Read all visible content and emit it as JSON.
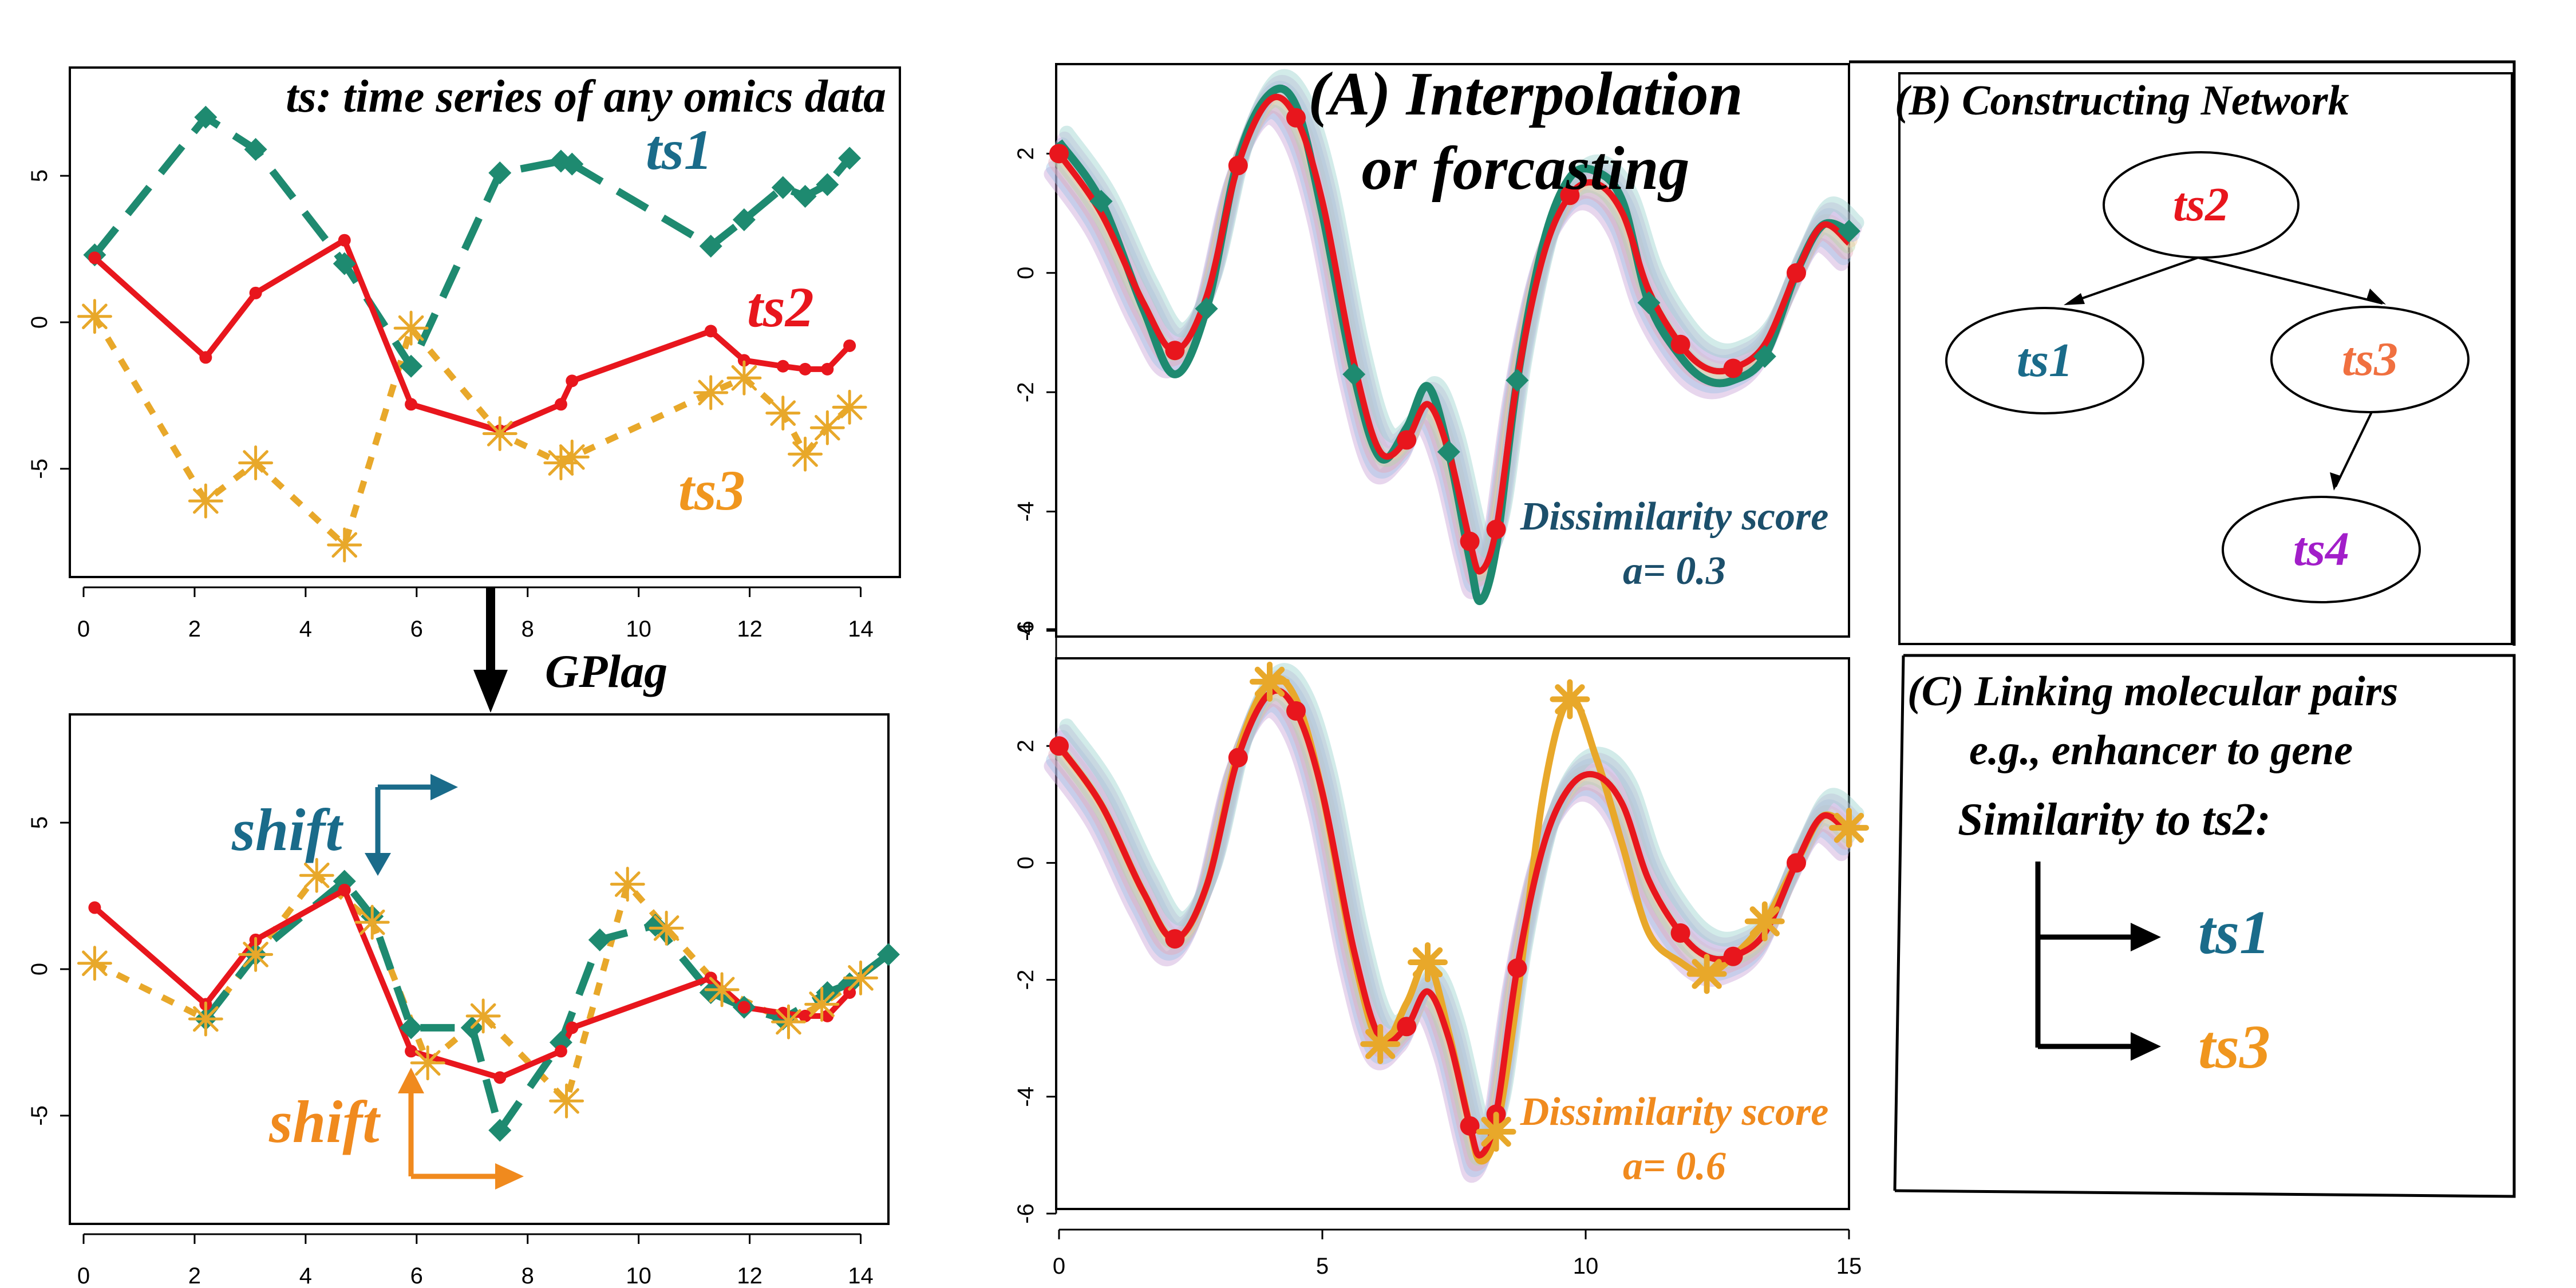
{
  "colors": {
    "ts1": "#1a6b8a",
    "ts1_line": "#1e8a70",
    "ts2": "#e8161d",
    "ts3": "#f0961e",
    "ts3_line": "#e8a82a",
    "ts4": "#a21ec9",
    "ts3_node": "#f07040",
    "shift_blue": "#1a6b8a",
    "shift_orange": "#f08a1e",
    "score_blue": "#1c4f6b",
    "score_orange": "#f08a1e"
  },
  "left_top": {
    "caption": "ts: time series of any omics data",
    "label_ts1": "ts1",
    "label_ts2": "ts2",
    "label_ts3": "ts3",
    "xticks": [
      "0",
      "2",
      "4",
      "6",
      "8",
      "10",
      "12",
      "14"
    ],
    "yticks": [
      "5",
      "0",
      "-5"
    ]
  },
  "arrow_label": "GPlag",
  "left_bottom": {
    "shift_top": "shift",
    "shift_bottom": "shift",
    "xticks": [
      "0",
      "2",
      "4",
      "6",
      "8",
      "10",
      "12",
      "14"
    ],
    "yticks": [
      "5",
      "0",
      "-5"
    ]
  },
  "panel_a": {
    "title_line1": "(A) Interpolation",
    "title_line2": "or forcasting",
    "top_score_line1": "Dissimilarity score",
    "top_score_line2": "a= 0.3",
    "bottom_score_line1": "Dissimilarity score",
    "bottom_score_line2": "a= 0.6",
    "top_yticks": [
      "2",
      "0",
      "-2",
      "-4",
      "-6"
    ],
    "bottom_yticks": [
      "4",
      "2",
      "0",
      "-2",
      "-4",
      "-6"
    ],
    "xticks": [
      "0",
      "5",
      "10",
      "15"
    ]
  },
  "panel_b": {
    "title": "(B) Constructing Network",
    "nodes": [
      "ts2",
      "ts1",
      "ts3",
      "ts4"
    ]
  },
  "panel_c": {
    "title": "(C) Linking molecular pairs",
    "example": "e.g., enhancer to gene",
    "similarity": "Similarity to ts2:",
    "first": "ts1",
    "second": "ts3"
  },
  "chart_data": [
    {
      "type": "line",
      "xlim": [
        0,
        14.5
      ],
      "ylim": [
        -8.5,
        8.5
      ],
      "series": [
        {
          "name": "ts1",
          "x": [
            0.2,
            2.2,
            3.1,
            4.7,
            5.9,
            7.5,
            8.6,
            8.8,
            11.3,
            11.9,
            12.6,
            13.0,
            13.4,
            13.8
          ],
          "y": [
            2.3,
            7.0,
            5.9,
            2.0,
            -1.5,
            5.1,
            5.5,
            5.4,
            2.6,
            3.5,
            4.6,
            4.3,
            4.7,
            5.6
          ]
        },
        {
          "name": "ts2",
          "x": [
            0.2,
            2.2,
            3.1,
            4.7,
            5.9,
            7.5,
            8.6,
            8.8,
            11.3,
            11.9,
            12.6,
            13.0,
            13.4,
            13.8
          ],
          "y": [
            2.2,
            -1.2,
            1.0,
            2.8,
            -2.8,
            -3.7,
            -2.8,
            -2.0,
            -0.3,
            -1.3,
            -1.5,
            -1.6,
            -1.6,
            -0.8
          ]
        },
        {
          "name": "ts3",
          "x": [
            0.2,
            2.2,
            3.1,
            4.7,
            5.9,
            7.5,
            8.6,
            8.8,
            11.3,
            11.9,
            12.6,
            13.0,
            13.4,
            13.8
          ],
          "y": [
            0.2,
            -6.1,
            -4.8,
            -7.6,
            -0.2,
            -3.8,
            -4.8,
            -4.6,
            -2.4,
            -1.9,
            -3.1,
            -4.5,
            -3.6,
            -2.9
          ]
        }
      ]
    },
    {
      "type": "line",
      "xlim": [
        0,
        14.5
      ],
      "ylim": [
        -8.5,
        8.5
      ],
      "series": [
        {
          "name": "ts1",
          "x": [
            2.2,
            3.1,
            4.7,
            5.2,
            5.9,
            7.0,
            7.5,
            8.6,
            9.3,
            10.3,
            11.3,
            11.9,
            12.6,
            13.4,
            13.8,
            14.5
          ],
          "y": [
            -1.7,
            0.5,
            3.0,
            1.8,
            -2.0,
            -2.0,
            -5.5,
            -2.5,
            1.0,
            1.5,
            -0.8,
            -1.3,
            -1.7,
            -0.8,
            -0.5,
            0.5
          ]
        },
        {
          "name": "ts2",
          "x": [
            0.2,
            2.2,
            3.1,
            4.7,
            5.9,
            7.5,
            8.6,
            8.8,
            11.3,
            11.9,
            12.6,
            13.0,
            13.4,
            13.8
          ],
          "y": [
            2.1,
            -1.2,
            1.0,
            2.7,
            -2.8,
            -3.7,
            -2.8,
            -2.0,
            -0.3,
            -1.3,
            -1.5,
            -1.6,
            -1.6,
            -0.8
          ]
        },
        {
          "name": "ts3",
          "x": [
            0.2,
            2.2,
            3.1,
            4.2,
            5.2,
            6.2,
            7.2,
            8.7,
            9.8,
            10.5,
            11.5,
            12.7,
            13.3,
            14.0
          ],
          "y": [
            0.2,
            -1.7,
            0.5,
            3.2,
            1.6,
            -3.2,
            -1.6,
            -4.5,
            2.9,
            1.4,
            -0.7,
            -1.8,
            -1.2,
            -0.3
          ]
        }
      ]
    },
    {
      "type": "line",
      "xlim": [
        0,
        15
      ],
      "ylim": [
        -6,
        3.5
      ],
      "series": [
        {
          "name": "ts2",
          "x": [
            0,
            0.8,
            1.6,
            2.2,
            2.8,
            3.4,
            4.0,
            4.5,
            5.0,
            5.6,
            6.1,
            6.6,
            7.0,
            7.4,
            7.8,
            8.0,
            8.3,
            8.7,
            9.2,
            9.7,
            10.2,
            10.7,
            11.2,
            11.8,
            12.3,
            12.8,
            13.4,
            14.0,
            14.5,
            15
          ],
          "y": [
            2.0,
            1.0,
            -0.5,
            -1.3,
            -0.4,
            1.8,
            2.9,
            2.6,
            1.2,
            -1.5,
            -3.0,
            -2.8,
            -2.2,
            -3.0,
            -4.5,
            -5.0,
            -4.3,
            -1.8,
            0.3,
            1.3,
            1.5,
            1.0,
            -0.3,
            -1.2,
            -1.6,
            -1.6,
            -1.2,
            0.0,
            0.8,
            0.5
          ]
        },
        {
          "name": "ts1",
          "x": [
            0,
            0.8,
            1.6,
            2.2,
            2.8,
            3.4,
            4.0,
            4.5,
            5.0,
            5.6,
            6.1,
            6.6,
            7.0,
            7.4,
            7.8,
            8.0,
            8.3,
            8.7,
            9.2,
            9.7,
            10.2,
            10.7,
            11.2,
            11.8,
            12.3,
            12.8,
            13.4,
            14.0,
            14.5,
            15
          ],
          "y": [
            2.2,
            1.2,
            -0.6,
            -1.7,
            -0.6,
            1.9,
            3.0,
            2.8,
            1.0,
            -1.7,
            -3.1,
            -2.6,
            -1.9,
            -3.0,
            -4.8,
            -5.5,
            -4.6,
            -1.8,
            0.5,
            1.6,
            1.7,
            1.2,
            -0.5,
            -1.4,
            -1.8,
            -1.8,
            -1.4,
            0.0,
            0.8,
            0.7
          ]
        }
      ]
    },
    {
      "type": "line",
      "xlim": [
        0,
        15
      ],
      "ylim": [
        -6,
        3.5
      ],
      "series": [
        {
          "name": "ts2",
          "x": [
            0,
            0.8,
            1.6,
            2.2,
            2.8,
            3.4,
            4.0,
            4.5,
            5.0,
            5.6,
            6.1,
            6.6,
            7.0,
            7.4,
            7.8,
            8.0,
            8.3,
            8.7,
            9.2,
            9.7,
            10.2,
            10.7,
            11.2,
            11.8,
            12.3,
            12.8,
            13.4,
            14.0,
            14.5,
            15
          ],
          "y": [
            2.0,
            1.0,
            -0.5,
            -1.3,
            -0.4,
            1.8,
            2.9,
            2.6,
            1.2,
            -1.5,
            -3.0,
            -2.8,
            -2.2,
            -3.0,
            -4.5,
            -5.0,
            -4.3,
            -1.8,
            0.3,
            1.3,
            1.5,
            1.0,
            -0.3,
            -1.2,
            -1.6,
            -1.6,
            -1.2,
            0.0,
            0.8,
            0.5
          ]
        },
        {
          "name": "ts3",
          "x": [
            0,
            0.8,
            1.6,
            2.2,
            2.8,
            3.4,
            4.0,
            4.5,
            5.0,
            5.6,
            6.1,
            6.6,
            7.0,
            7.4,
            7.8,
            8.0,
            8.3,
            8.7,
            9.2,
            9.7,
            10.2,
            10.7,
            11.2,
            11.8,
            12.3,
            12.8,
            13.4,
            14.0,
            14.5,
            15
          ],
          "y": [
            2.0,
            1.0,
            -0.5,
            -1.3,
            -0.4,
            1.9,
            3.1,
            2.8,
            1.2,
            -1.6,
            -3.1,
            -2.4,
            -1.7,
            -2.9,
            -4.5,
            -5.1,
            -4.6,
            -2.3,
            1.2,
            2.8,
            1.8,
            0.3,
            -1.2,
            -1.7,
            -1.9,
            -1.6,
            -1.0,
            0.0,
            0.8,
            0.6
          ]
        }
      ]
    }
  ]
}
